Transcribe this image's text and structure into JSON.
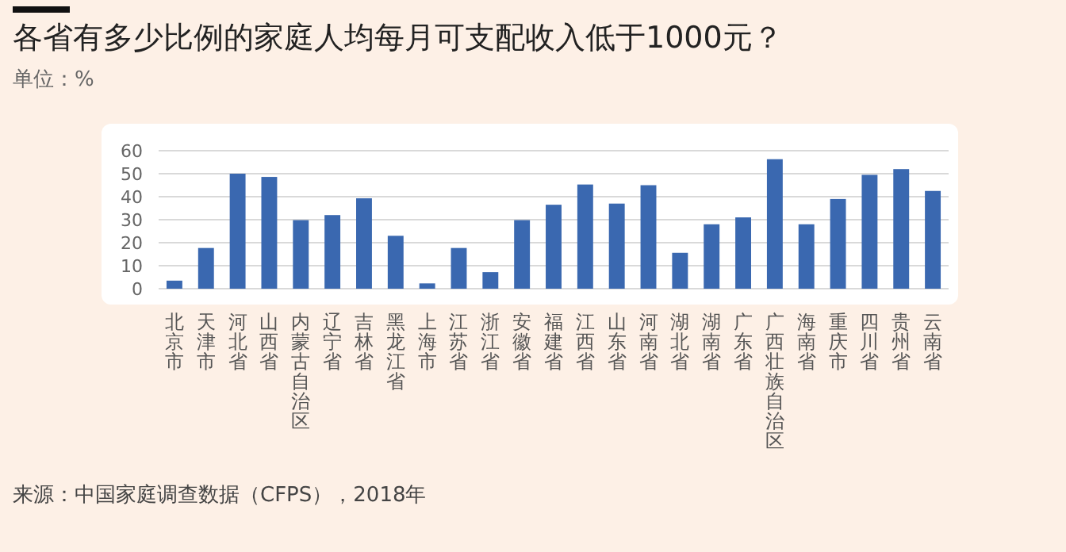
{
  "chart_data": {
    "type": "bar",
    "title": "各省有多少比例的家庭人均每月可支配收入低于1000元？",
    "subtitle": "单位：%",
    "categories": [
      "北京市",
      "天津市",
      "河北省",
      "山西省",
      "内蒙古自治区",
      "辽宁省",
      "吉林省",
      "黑龙江省",
      "上海市",
      "江苏省",
      "浙江省",
      "安徽省",
      "福建省",
      "江西省",
      "山东省",
      "河南省",
      "湖北省",
      "湖南省",
      "广东省",
      "广西壮族自治区",
      "海南省",
      "重庆市",
      "四川省",
      "贵州省",
      "云南省"
    ],
    "values": [
      3.5,
      17.7,
      50,
      48.6,
      29.8,
      32,
      39.3,
      23,
      2.3,
      17.7,
      7.2,
      29.8,
      36.5,
      45.3,
      37,
      45,
      15.6,
      28,
      31,
      56.3,
      28,
      39,
      49.5,
      52,
      42.5
    ],
    "color": "#3a68b0",
    "ylim": [
      0,
      60
    ],
    "yticks": [
      0,
      10,
      20,
      30,
      40,
      50,
      60
    ],
    "grid": "y",
    "annotations": [
      "来源：中国家庭调查数据（CFPS），2018年"
    ]
  }
}
